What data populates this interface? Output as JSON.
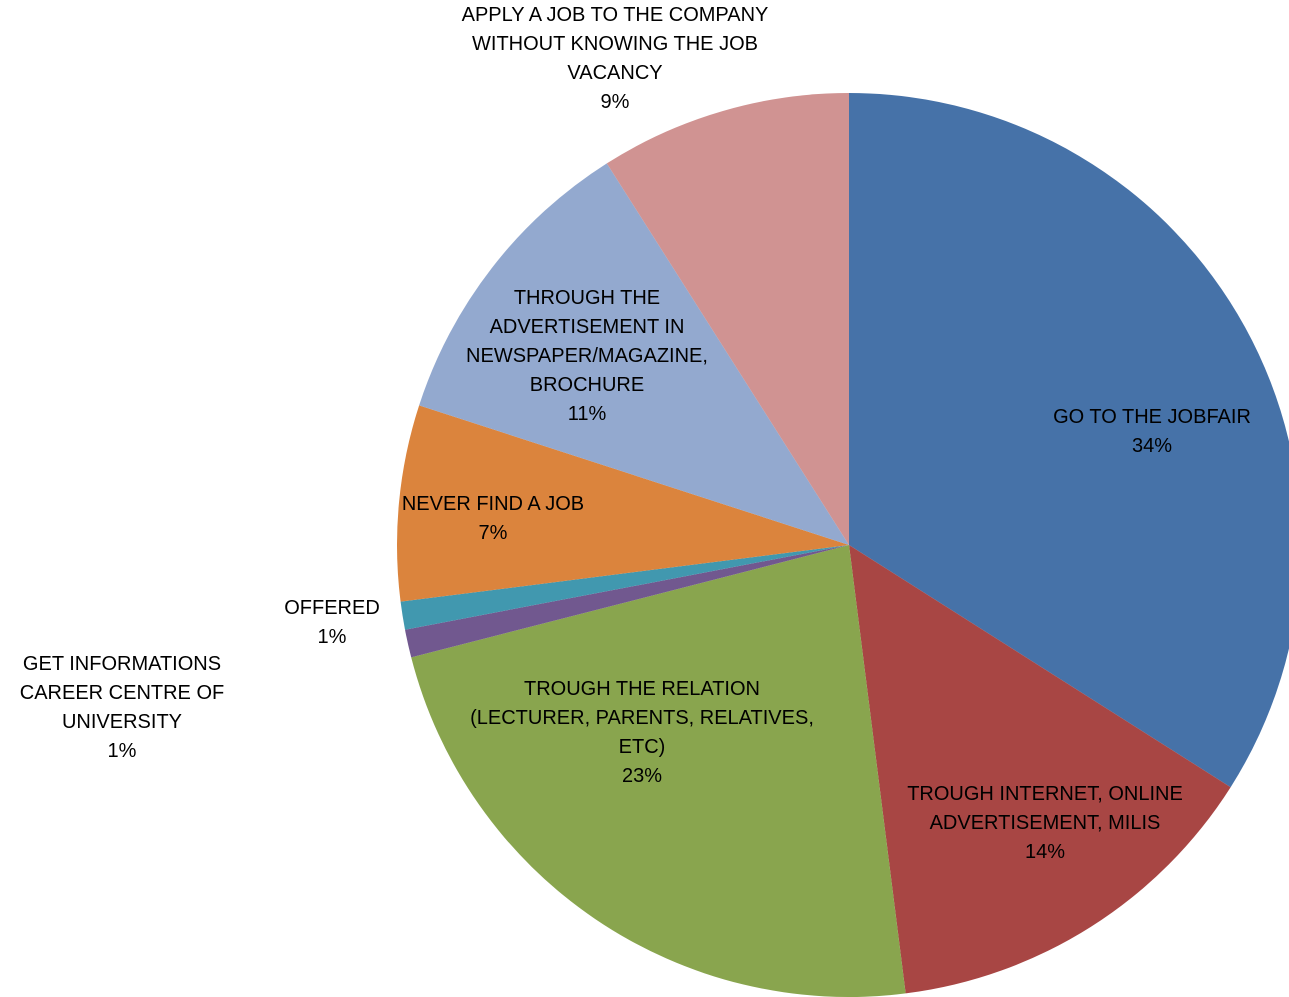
{
  "chart_data": {
    "type": "pie",
    "title": "",
    "slices": [
      {
        "label_lines": [
          "GO TO THE JOBFAIR"
        ],
        "percent_label": "34%",
        "value": 34,
        "color": "#4672A8"
      },
      {
        "label_lines": [
          "TROUGH INTERNET, ONLINE",
          "ADVERTISEMENT, MILIS"
        ],
        "percent_label": "14%",
        "value": 14,
        "color": "#A84644"
      },
      {
        "label_lines": [
          "TROUGH THE RELATION",
          "(LECTURER, PARENTS, RELATIVES,",
          "ETC)"
        ],
        "percent_label": "23%",
        "value": 23,
        "color": "#89A54E"
      },
      {
        "label_lines": [
          "GET INFORMATIONS",
          "CAREER CENTRE OF",
          "UNIVERSITY"
        ],
        "percent_label": "1%",
        "value": 1,
        "color": "#71588F"
      },
      {
        "label_lines": [
          "OFFERED"
        ],
        "percent_label": "1%",
        "value": 1,
        "color": "#4198AF"
      },
      {
        "label_lines": [
          "NEVER FIND A JOB"
        ],
        "percent_label": "7%",
        "value": 7,
        "color": "#DB843D"
      },
      {
        "label_lines": [
          "THROUGH THE",
          "ADVERTISEMENT IN",
          "NEWSPAPER/MAGAZINE,",
          "BROCHURE"
        ],
        "percent_label": "11%",
        "value": 11,
        "color": "#93A9CF"
      },
      {
        "label_lines": [
          "APPLY A JOB TO THE COMPANY",
          "WITHOUT KNOWING THE JOB",
          "VACANCY"
        ],
        "percent_label": "9%",
        "value": 9,
        "color": "#D09392"
      }
    ]
  }
}
